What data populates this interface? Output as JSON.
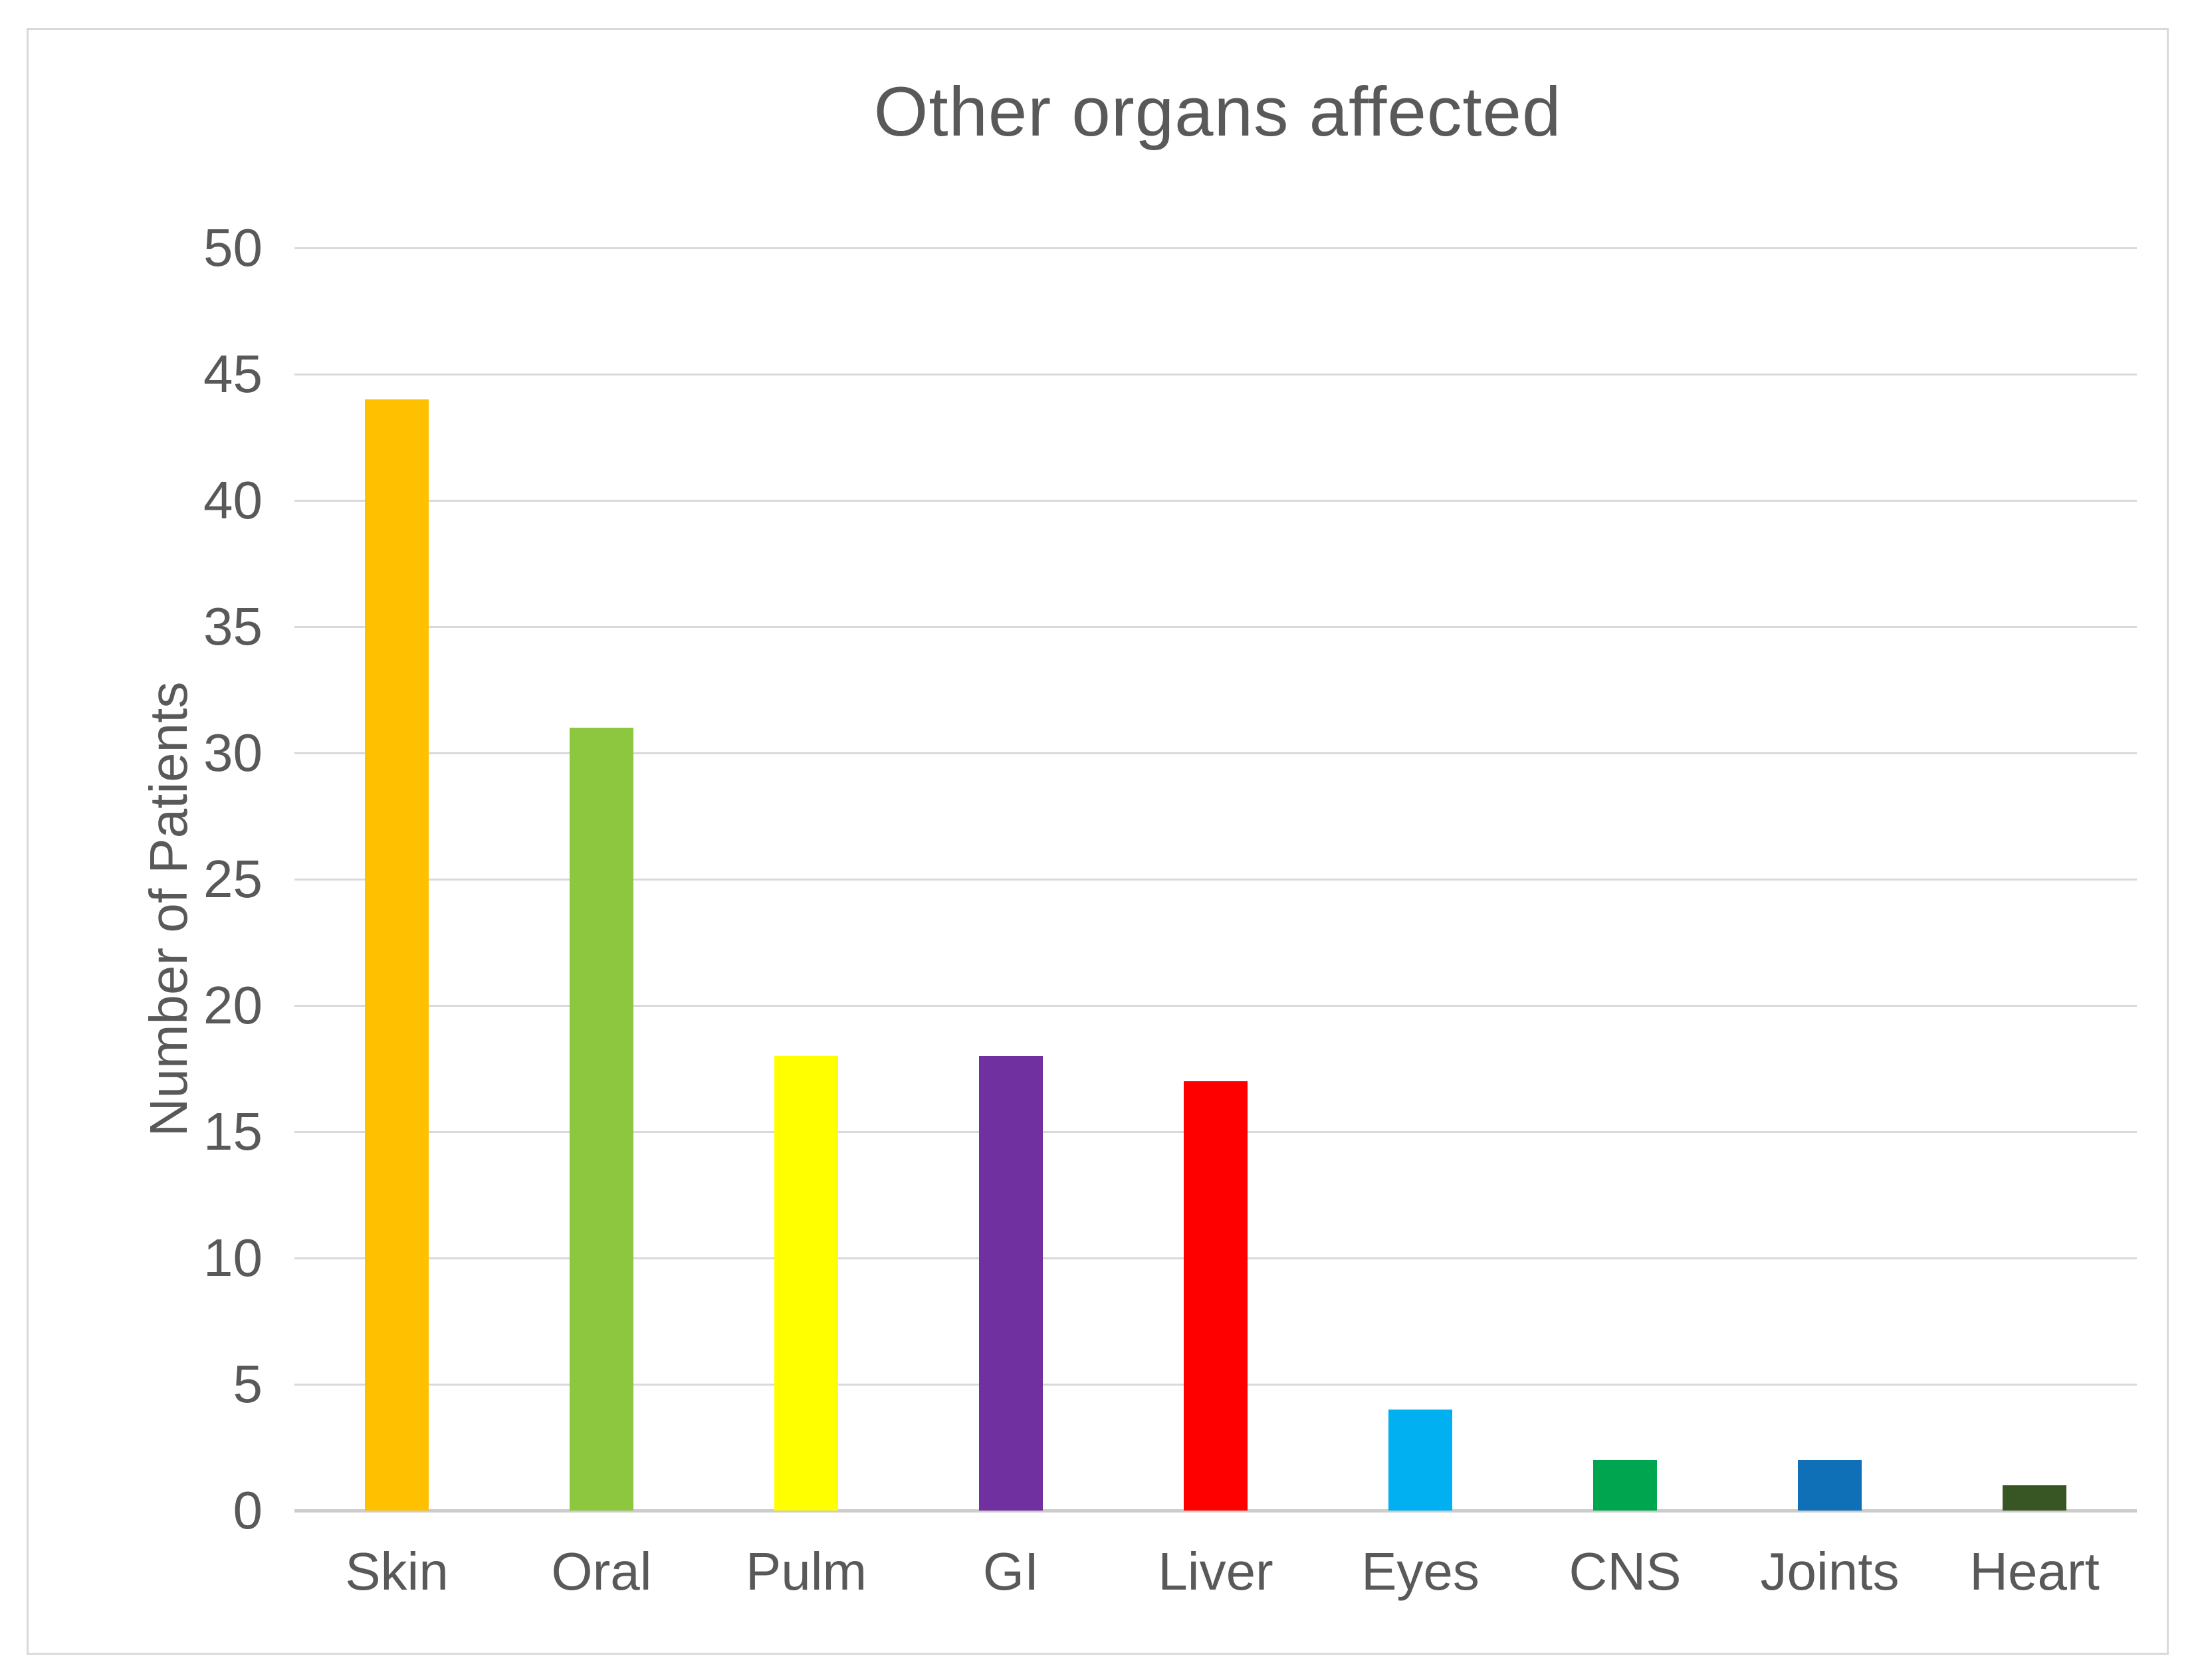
{
  "chart_data": {
    "type": "bar",
    "title": "Other organs affected",
    "xlabel": "",
    "ylabel": "Number of Patients",
    "categories": [
      "Skin",
      "Oral",
      "Pulm",
      "GI",
      "Liver",
      "Eyes",
      "CNS",
      "Joints",
      "Heart"
    ],
    "values": [
      44,
      31,
      18,
      18,
      17,
      4,
      2,
      2,
      1
    ],
    "bar_colors": [
      "#FFC000",
      "#8DC63F",
      "#FFFF00",
      "#7030A0",
      "#FF0000",
      "#00B0F0",
      "#00A64F",
      "#0F70B8",
      "#375623"
    ],
    "ylim": [
      0,
      50
    ],
    "ytick_step": 5,
    "yticks": [
      0,
      5,
      10,
      15,
      20,
      25,
      30,
      35,
      40,
      45,
      50
    ],
    "grid": true,
    "legend": false
  },
  "colors": {
    "background": "#FFFFFF",
    "frame_border": "#D9D9D9",
    "gridline": "#D9D9D9",
    "axis_line": "#CCCCCC",
    "text": "#595959"
  }
}
